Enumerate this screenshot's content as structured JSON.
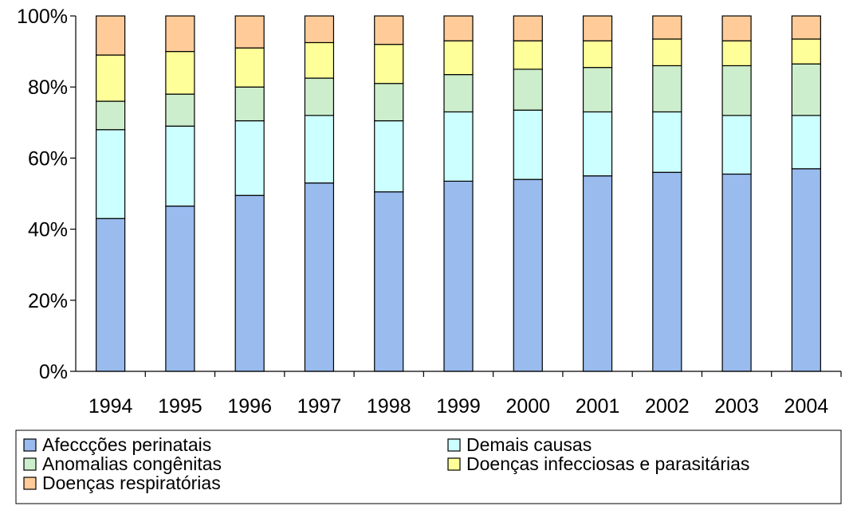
{
  "chart_data": {
    "type": "bar",
    "stacked": true,
    "normalized_percent": true,
    "categories": [
      "1994",
      "1995",
      "1996",
      "1997",
      "1998",
      "1999",
      "2000",
      "2001",
      "2002",
      "2003",
      "2004"
    ],
    "series": [
      {
        "name": "Afeccções perinatais",
        "color": "#99bbee",
        "values": [
          43,
          46.5,
          49.5,
          53,
          50.5,
          53.5,
          54,
          55,
          56,
          55.5,
          57
        ]
      },
      {
        "name": "Demais causas",
        "color": "#ccffff",
        "values": [
          25,
          22.5,
          21,
          19,
          20,
          19.5,
          19.5,
          18,
          17,
          16.5,
          15
        ]
      },
      {
        "name": "Anomalias congênitas",
        "color": "#cceecc",
        "values": [
          8,
          9,
          9.5,
          10.5,
          10.5,
          10.5,
          11.5,
          12.5,
          13,
          14,
          14.5
        ]
      },
      {
        "name": "Doenças infecciosas e parasitárias",
        "color": "#ffff99",
        "values": [
          13,
          12,
          11,
          10,
          11,
          9.5,
          8,
          7.5,
          7.5,
          7,
          7
        ]
      },
      {
        "name": "Doenças respiratórias",
        "color": "#ffcc99",
        "values": [
          11,
          10,
          9,
          7.5,
          8,
          7,
          7,
          7,
          6.5,
          7,
          6.5
        ]
      }
    ],
    "yticks": [
      "0%",
      "20%",
      "40%",
      "60%",
      "80%",
      "100%"
    ],
    "ylim": [
      0,
      100
    ],
    "grid": false,
    "legend_position": "bottom"
  }
}
